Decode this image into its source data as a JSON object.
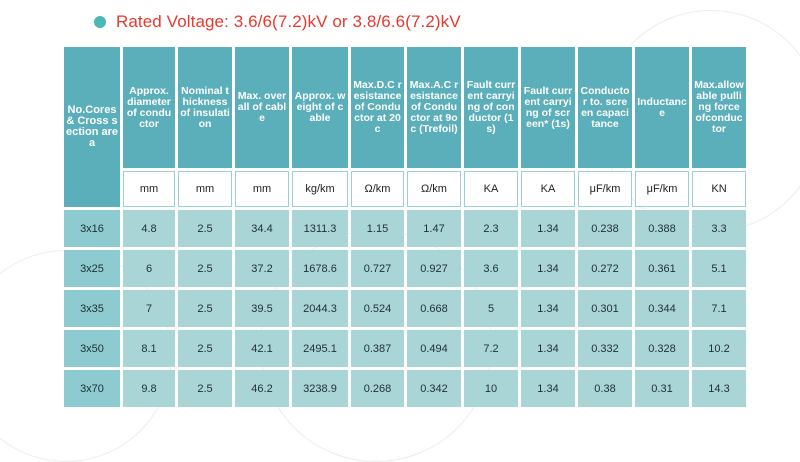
{
  "title": "Rated Voltage: 3.6/6(7.2)kV or 3.8/6.6(7.2)kV",
  "headers": [
    "No.Cores & Cross section area",
    "Approx. diameter of conductor",
    "Nominal thickness of insulation",
    "Max. overall of cable",
    "Approx. weight of cable",
    "Max.D.C resistance of Conductor at 20c",
    "Max.A.C resistance of Conductor at 9oc (Trefoil)",
    "Fault current carrying of conductor (1s)",
    "Fault current carrying of screen* (1s)",
    "Conductor to. screen capacitance",
    "Inductance",
    "Max.allowable pulling force ofconductor"
  ],
  "units": [
    "mm",
    "mm",
    "mm",
    "kg/km",
    "Ω/km",
    "Ω/km",
    "KA",
    "KA",
    "μF/km",
    "μF/km",
    "KN"
  ],
  "rows": [
    [
      "3x16",
      "4.8",
      "2.5",
      "34.4",
      "1311.3",
      "1.15",
      "1.47",
      "2.3",
      "1.34",
      "0.238",
      "0.388",
      "3.3"
    ],
    [
      "3x25",
      "6",
      "2.5",
      "37.2",
      "1678.6",
      "0.727",
      "0.927",
      "3.6",
      "1.34",
      "0.272",
      "0.361",
      "5.1"
    ],
    [
      "3x35",
      "7",
      "2.5",
      "39.5",
      "2044.3",
      "0.524",
      "0.668",
      "5",
      "1.34",
      "0.301",
      "0.344",
      "7.1"
    ],
    [
      "3x50",
      "8.1",
      "2.5",
      "42.1",
      "2495.1",
      "0.387",
      "0.494",
      "7.2",
      "1.34",
      "0.332",
      "0.328",
      "10.2"
    ],
    [
      "3x70",
      "9.8",
      "2.5",
      "46.2",
      "3238.9",
      "0.268",
      "0.342",
      "10",
      "1.34",
      "0.38",
      "0.31",
      "14.3"
    ]
  ],
  "colors": {
    "title": "#e8392e",
    "dot": "#4bb8b6",
    "header": "#5aafbb",
    "row": "#a9d5d7",
    "first_col": "#8dcbd1"
  }
}
